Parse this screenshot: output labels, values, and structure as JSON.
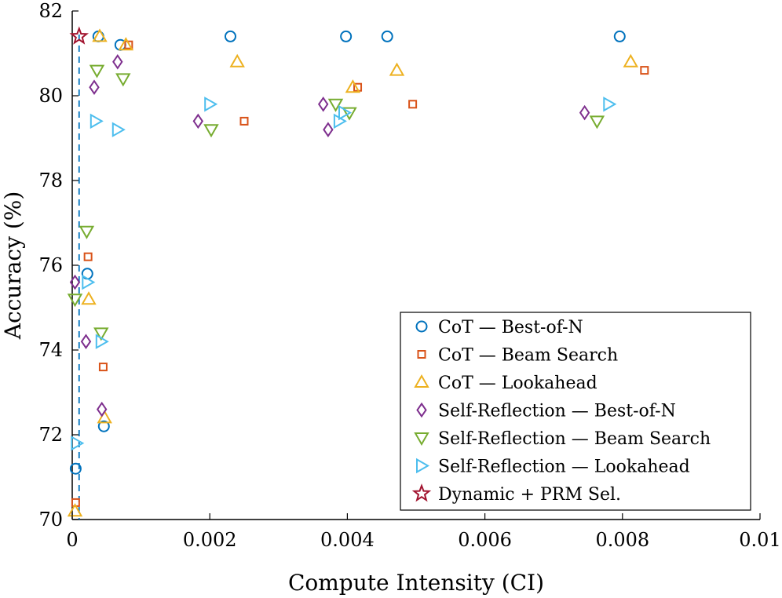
{
  "chart_data": {
    "type": "scatter",
    "title": "",
    "xlabel": "Compute Intensity (CI)",
    "ylabel": "Accuracy (%)",
    "xlim": [
      0,
      0.01
    ],
    "ylim": [
      70,
      82
    ],
    "xticks": [
      0,
      0.002,
      0.004,
      0.006,
      0.008,
      0.01
    ],
    "xtick_labels": [
      "0",
      "0.002",
      "0.004",
      "0.006",
      "0.008",
      "0.01"
    ],
    "yticks": [
      70,
      72,
      74,
      76,
      78,
      80,
      82
    ],
    "ytick_labels": [
      "70",
      "72",
      "74",
      "76",
      "78",
      "80",
      "82"
    ],
    "grid": false,
    "legend_position": "bottom-right",
    "reference_line": {
      "x": 0.0001,
      "style": "dashed",
      "color": "#0072BD"
    },
    "series": [
      {
        "name": "CoT — Best-of-N",
        "marker": "circle",
        "color": "#0072BD",
        "points": [
          [
            5e-05,
            71.2
          ],
          [
            0.00022,
            75.8
          ],
          [
            0.00046,
            72.2
          ],
          [
            0.00038,
            81.4
          ],
          [
            0.0007,
            81.2
          ],
          [
            0.0023,
            81.4
          ],
          [
            0.00398,
            81.4
          ],
          [
            0.00458,
            81.4
          ],
          [
            0.00796,
            81.4
          ]
        ]
      },
      {
        "name": "CoT — Beam Search",
        "marker": "square",
        "color": "#D95319",
        "points": [
          [
            5e-05,
            70.4
          ],
          [
            0.00023,
            76.2
          ],
          [
            0.00045,
            73.6
          ],
          [
            0.00082,
            81.2
          ],
          [
            0.0025,
            79.4
          ],
          [
            0.00415,
            80.2
          ],
          [
            0.00495,
            79.8
          ],
          [
            0.00832,
            80.6
          ]
        ]
      },
      {
        "name": "CoT — Lookahead",
        "marker": "triangle-up",
        "color": "#EDB120",
        "points": [
          [
            4e-05,
            70.2
          ],
          [
            0.00024,
            75.2
          ],
          [
            0.00047,
            72.4
          ],
          [
            0.0004,
            81.4
          ],
          [
            0.00078,
            81.2
          ],
          [
            0.0024,
            80.8
          ],
          [
            0.00408,
            80.2
          ],
          [
            0.00472,
            80.6
          ],
          [
            0.00812,
            80.8
          ]
        ]
      },
      {
        "name": "Self-Reflection — Best-of-N",
        "marker": "diamond",
        "color": "#7E2F8E",
        "points": [
          [
            4e-05,
            75.6
          ],
          [
            0.0002,
            74.2
          ],
          [
            0.00043,
            72.6
          ],
          [
            0.00032,
            80.2
          ],
          [
            0.00066,
            80.8
          ],
          [
            0.00183,
            79.4
          ],
          [
            0.00365,
            79.8
          ],
          [
            0.00372,
            79.2
          ],
          [
            0.00745,
            79.6
          ]
        ]
      },
      {
        "name": "Self-Reflection — Beam Search",
        "marker": "triangle-down",
        "color": "#77AC30",
        "points": [
          [
            4e-05,
            75.2
          ],
          [
            0.00021,
            76.8
          ],
          [
            0.00042,
            74.4
          ],
          [
            0.00036,
            80.6
          ],
          [
            0.00074,
            80.4
          ],
          [
            0.00202,
            79.2
          ],
          [
            0.00383,
            79.8
          ],
          [
            0.00403,
            79.6
          ],
          [
            0.00763,
            79.4
          ]
        ]
      },
      {
        "name": "Self-Reflection — Lookahead",
        "marker": "triangle-right",
        "color": "#4DBEEE",
        "points": [
          [
            6e-05,
            71.8
          ],
          [
            0.00022,
            75.6
          ],
          [
            0.00042,
            74.2
          ],
          [
            0.00034,
            79.4
          ],
          [
            0.00066,
            79.2
          ],
          [
            0.002,
            79.8
          ],
          [
            0.00388,
            79.4
          ],
          [
            0.00395,
            79.6
          ],
          [
            0.0078,
            79.8
          ]
        ]
      },
      {
        "name": "Dynamic + PRM Sel.",
        "marker": "star",
        "color": "#A2142F",
        "points": [
          [
            0.0001,
            81.4
          ]
        ]
      }
    ]
  }
}
